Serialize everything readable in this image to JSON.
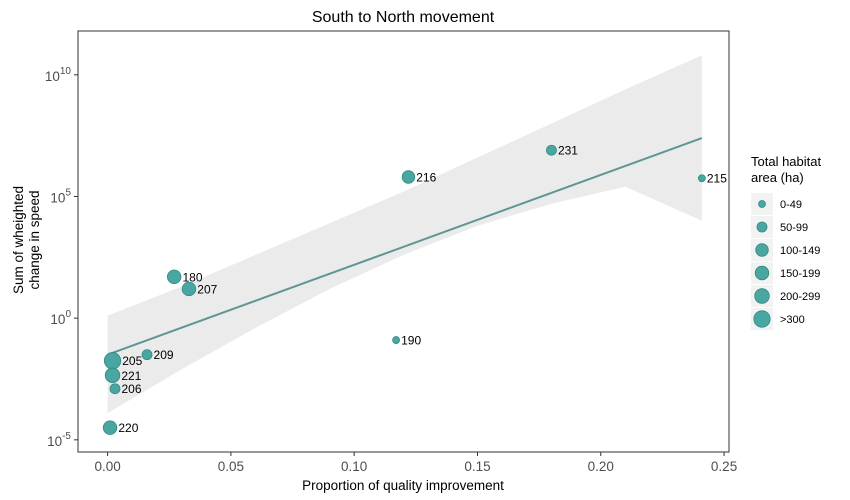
{
  "chart_data": {
    "type": "scatter",
    "title": "South to North movement",
    "xlabel": "Proportion of quality improvement",
    "ylabel_lines": [
      "Sum of wheighted",
      "change in speed"
    ],
    "y_scale": "log10",
    "xlim": [
      -0.012,
      0.252
    ],
    "ylim_log10": [
      -5.5,
      11.8
    ],
    "x_ticks": [
      {
        "value": 0.0,
        "label": "0.00"
      },
      {
        "value": 0.05,
        "label": "0.05"
      },
      {
        "value": 0.1,
        "label": "0.10"
      },
      {
        "value": 0.15,
        "label": "0.15"
      },
      {
        "value": 0.2,
        "label": "0.20"
      },
      {
        "value": 0.25,
        "label": "0.25"
      }
    ],
    "y_ticks": [
      {
        "log10": -5,
        "base": "10",
        "exp": "-5"
      },
      {
        "log10": 0,
        "base": "10",
        "exp": "0"
      },
      {
        "log10": 5,
        "base": "10",
        "exp": "5"
      },
      {
        "log10": 10,
        "base": "10",
        "exp": "10"
      }
    ],
    "points": [
      {
        "label": "231",
        "x": 0.18,
        "log10_y": 6.9,
        "size_class": 1
      },
      {
        "label": "216",
        "x": 0.122,
        "log10_y": 5.8,
        "size_class": 2
      },
      {
        "label": "215",
        "x": 0.241,
        "log10_y": 5.75,
        "size_class": 0
      },
      {
        "label": "180",
        "x": 0.027,
        "log10_y": 1.7,
        "size_class": 3
      },
      {
        "label": "207",
        "x": 0.033,
        "log10_y": 1.2,
        "size_class": 3
      },
      {
        "label": "190",
        "x": 0.117,
        "log10_y": -0.9,
        "size_class": 0
      },
      {
        "label": "209",
        "x": 0.016,
        "log10_y": -1.5,
        "size_class": 1
      },
      {
        "label": "205",
        "x": 0.002,
        "log10_y": -1.75,
        "size_class": 5
      },
      {
        "label": "221",
        "x": 0.002,
        "log10_y": -2.35,
        "size_class": 4
      },
      {
        "label": "206",
        "x": 0.003,
        "log10_y": -2.9,
        "size_class": 1
      },
      {
        "label": "220",
        "x": 0.001,
        "log10_y": -4.5,
        "size_class": 3
      }
    ],
    "trend_line": {
      "x": [
        0.0,
        0.241
      ],
      "log10_y": [
        -1.5,
        7.4
      ]
    },
    "confidence_band": {
      "x": [
        0.0,
        0.03,
        0.06,
        0.09,
        0.12,
        0.15,
        0.18,
        0.21,
        0.241
      ],
      "upper_log10": [
        0.1,
        1.3,
        2.6,
        3.9,
        5.2,
        6.6,
        8.0,
        9.4,
        10.8
      ],
      "lower_log10": [
        -3.9,
        -2.1,
        -0.4,
        1.2,
        2.6,
        3.8,
        4.7,
        5.4,
        4.0
      ]
    },
    "legend": {
      "title_lines": [
        "Total habitat",
        "area (ha)"
      ],
      "entries": [
        "0-49",
        "50-99",
        "100-149",
        "150-199",
        "200-299",
        ">300"
      ]
    },
    "grid": false,
    "legend_position": "right",
    "colors": {
      "point_fill": "#4aa6a0",
      "point_stroke": "#2f8a85",
      "trend_line": "#5f9595",
      "band": "#ebebeb",
      "legend_key_bg": "#f2f2f2"
    }
  }
}
